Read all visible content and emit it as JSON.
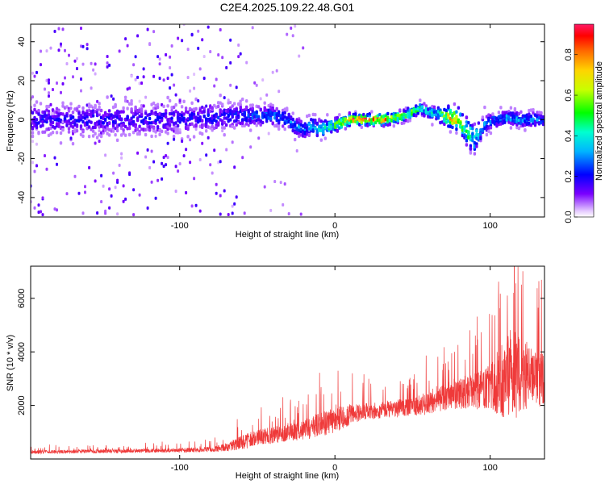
{
  "chart_data": [
    {
      "type": "heatmap",
      "title": "C2E4.2025.109.22.48.G01",
      "xlabel": "Height of straight line (km)",
      "ylabel": "Frequency (Hz)",
      "xlim": [
        -196,
        135
      ],
      "ylim": [
        -50,
        49
      ],
      "xticks": [
        "-100",
        "0",
        "100"
      ],
      "yticks": [
        "-40",
        "-20",
        "0",
        "20",
        "40"
      ],
      "grid": false,
      "colorbar": {
        "label": "Normalized spectral amplitude",
        "range": [
          0,
          0.95
        ],
        "ticks": [
          "0.0",
          "0.2",
          "0.4",
          "0.6",
          "0.8"
        ]
      },
      "ridge": {
        "x": [
          -196,
          -170,
          -140,
          -110,
          -80,
          -60,
          -50,
          -40,
          -30,
          -25,
          -20,
          -15,
          -10,
          0,
          10,
          30,
          40,
          45,
          50,
          55,
          60,
          65,
          70,
          75,
          80,
          85,
          90,
          95,
          100,
          110,
          120,
          135
        ],
        "y": [
          0,
          0,
          0,
          0,
          1,
          2,
          2,
          2,
          0,
          -4,
          -5,
          -3,
          -5,
          -3,
          0,
          0,
          1,
          2,
          4,
          6,
          4,
          3,
          2,
          1,
          0,
          -6,
          -10,
          -4,
          -1,
          1,
          0,
          0
        ],
        "spread": [
          8,
          8,
          8,
          8,
          7,
          6,
          5,
          5,
          5,
          5,
          5,
          5,
          5,
          4,
          3,
          3,
          3,
          3,
          3,
          3,
          3,
          4,
          5,
          6,
          6,
          7,
          8,
          6,
          4,
          4,
          4,
          4
        ],
        "peak": [
          0.2,
          0.2,
          0.2,
          0.2,
          0.22,
          0.25,
          0.3,
          0.3,
          0.3,
          0.35,
          0.3,
          0.35,
          0.4,
          0.55,
          0.9,
          0.9,
          0.7,
          0.75,
          0.6,
          0.5,
          0.45,
          0.4,
          0.6,
          0.85,
          0.8,
          0.6,
          0.45,
          0.35,
          0.3,
          0.35,
          0.35,
          0.3
        ]
      }
    },
    {
      "type": "line",
      "title": "",
      "xlabel": "Height of straight line (km)",
      "ylabel": "SNR (10 * v/v)",
      "xlim": [
        -196,
        135
      ],
      "ylim": [
        0,
        7200
      ],
      "xticks": [
        "-100",
        "0",
        "100"
      ],
      "yticks": [
        "2000",
        "4000",
        "6000"
      ],
      "grid": false,
      "series": [
        {
          "color": "#ef3a3a",
          "envelope": {
            "x": [
              -196,
              -150,
              -100,
              -80,
              -70,
              -60,
              -50,
              -40,
              -30,
              -20,
              -10,
              0,
              10,
              20,
              30,
              40,
              50,
              60,
              70,
              80,
              90,
              100,
              110,
              115,
              120,
              130,
              135
            ],
            "mean": [
              250,
              280,
              320,
              350,
              420,
              600,
              750,
              850,
              950,
              1050,
              1250,
              1400,
              1650,
              1750,
              1800,
              1850,
              1900,
              2050,
              2300,
              2400,
              2450,
              2600,
              2900,
              3000,
              3000,
              2900,
              2800
            ],
            "amp": [
              150,
              160,
              180,
              220,
              350,
              600,
              700,
              700,
              700,
              850,
              1000,
              1100,
              900,
              700,
              700,
              750,
              800,
              950,
              1200,
              1300,
              1500,
              1900,
              3500,
              4000,
              2900,
              2400,
              2200
            ]
          }
        }
      ]
    }
  ]
}
